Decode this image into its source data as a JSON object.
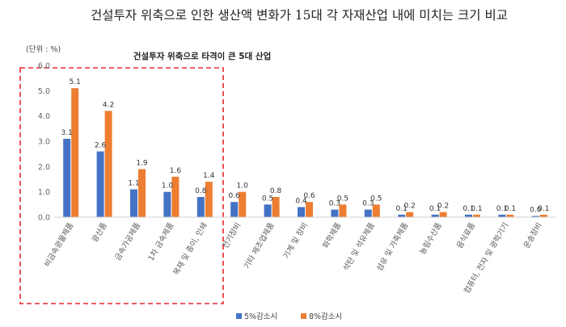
{
  "chart_data": {
    "type": "bar",
    "title": "건설투자 위축으로 인한 생산액 변화가 15대 각 자재산업 내에 미치는 크기 비교",
    "unit_label": "(단위 : %)",
    "highlight_label": "건설투자 위축으로 타격이 큰 5대 산업",
    "ylim": [
      0,
      6
    ],
    "yticks": [
      "0.0",
      "1.0",
      "2.0",
      "3.0",
      "4.0",
      "5.0",
      "6.0"
    ],
    "categories": [
      "비금속광물제품",
      "광산품",
      "금속가공제품",
      "1차 금속제품",
      "목재 및 종이, 인쇄",
      "전기장비",
      "기타 제조업제품",
      "기계 및 장비",
      "화학제품",
      "석탄 및 석유제품",
      "섬유 및 가죽제품",
      "농림수산품",
      "음식료품",
      "컴퓨터, 전자 및 광학기기",
      "운송장비"
    ],
    "series": [
      {
        "name": "5%감소시",
        "color": "#4472C4",
        "values": [
          3.1,
          2.6,
          1.1,
          1.0,
          0.8,
          0.6,
          0.5,
          0.4,
          0.3,
          0.3,
          0.1,
          0.1,
          0.1,
          0.1,
          0.0
        ],
        "labels": [
          "3.1",
          "2.6",
          "1.1",
          "1.0",
          "0.8",
          "0.6",
          "0.5",
          "0.4",
          "0.3",
          "0.3",
          "0.1",
          "0.1",
          "0.1",
          "0.1",
          "0.0"
        ]
      },
      {
        "name": "8%감소시",
        "color": "#ED7D31",
        "values": [
          5.1,
          4.2,
          1.9,
          1.6,
          1.4,
          1.0,
          0.8,
          0.6,
          0.5,
          0.5,
          0.2,
          0.2,
          0.1,
          0.1,
          0.1
        ],
        "labels": [
          "5.1",
          "4.2",
          "1.9",
          "1.6",
          "1.4",
          "1.0",
          "0.8",
          "0.6",
          "0.5",
          "0.5",
          "0.2",
          "0.2",
          "0.1",
          "0.1",
          "0.1"
        ]
      }
    ],
    "highlight_count": 5,
    "highlight_color": "#E8262A",
    "grid": false,
    "legend_position": "bottom"
  }
}
